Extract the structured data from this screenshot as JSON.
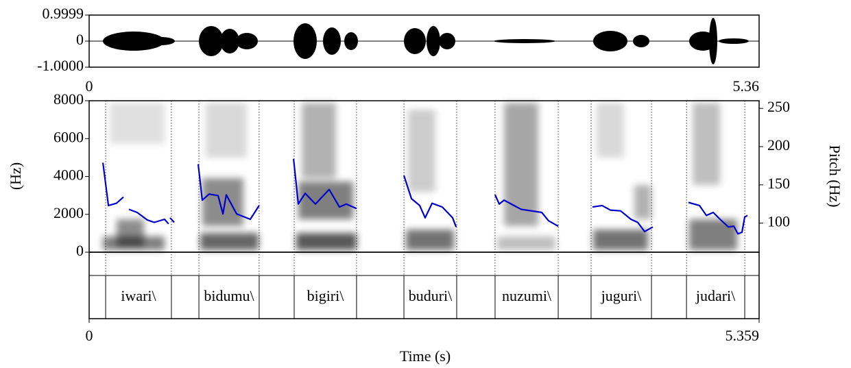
{
  "chart_data": {
    "type": "line",
    "xlabel": "Time (s)",
    "xlim": [
      0,
      5.359
    ],
    "xticks": [
      0,
      5.359
    ],
    "waveform": {
      "ylim": [
        -1,
        0.9999
      ],
      "yticks": [
        0.9999,
        0,
        {
          "value": -1,
          "label": "-1.0000"
        }
      ],
      "xlim": [
        0,
        5.36
      ],
      "xticks": [
        0,
        5.36
      ]
    },
    "ylabel": "(Hz)",
    "ylim": [
      0,
      8000
    ],
    "yticks": [
      0,
      2000,
      4000,
      6000,
      8000
    ],
    "y2label": "Pitch (Hz)",
    "y2lim": [
      62,
      260
    ],
    "y2ticks": [
      100,
      150,
      200,
      250
    ],
    "series": [
      {
        "color": "#0000cc",
        "axis": "y2",
        "x": [
          0.11,
          0.154,
          0.219,
          0.274,
          0.296,
          0.318,
          0.384,
          0.466,
          0.521,
          0.603,
          0.636,
          0.641,
          0.647,
          0.68
        ],
        "values": [
          179,
          123,
          126,
          134,
          null,
          118,
          114,
          104,
          101,
          105,
          99,
          null,
          107,
          101
        ]
      },
      {
        "color": "#0000cc",
        "axis": "y2",
        "x": [
          0.872,
          0.905,
          0.96,
          1.031,
          1.07,
          1.097,
          1.18,
          1.289,
          1.36
        ],
        "values": [
          177,
          130,
          138,
          136,
          112,
          137,
          112,
          105,
          123
        ]
      },
      {
        "color": "#0000cc",
        "axis": "y2",
        "x": [
          1.635,
          1.673,
          1.728,
          1.81,
          1.92,
          2.002,
          2.057,
          2.139
        ],
        "values": [
          184,
          125,
          139,
          125,
          144,
          121,
          125,
          119
        ]
      },
      {
        "color": "#0000cc",
        "axis": "y2",
        "x": [
          2.518,
          2.578,
          2.644,
          2.688,
          2.743,
          2.825,
          2.907,
          2.935
        ],
        "values": [
          162,
          132,
          123,
          107,
          126,
          121,
          107,
          95
        ]
      },
      {
        "color": "#0000cc",
        "axis": "y2",
        "x": [
          3.247,
          3.28,
          3.319,
          3.456,
          3.62,
          3.675,
          3.752
        ],
        "values": [
          137,
          125,
          130,
          118,
          114,
          103,
          96
        ]
      },
      {
        "color": "#0000cc",
        "axis": "y2",
        "x": [
          4.026,
          4.103,
          4.169,
          4.251,
          4.334,
          4.388,
          4.443,
          4.509
        ],
        "values": [
          121,
          123,
          117,
          116,
          105,
          101,
          89,
          95
        ]
      },
      {
        "color": "#0000cc",
        "axis": "y2",
        "x": [
          4.794,
          4.882,
          4.937,
          4.992,
          5.047,
          5.113,
          5.157,
          5.189,
          5.222,
          5.244,
          5.266
        ],
        "values": [
          127,
          123,
          110,
          114,
          105,
          95,
          96,
          86,
          88,
          108,
          110
        ]
      }
    ],
    "textgrid": {
      "intervals": [
        {
          "start": 0.132,
          "end": 0.658,
          "label": "iwari\\"
        },
        {
          "start": 0.878,
          "end": 1.36,
          "label": "bidumu\\"
        },
        {
          "start": 1.64,
          "end": 2.139,
          "label": "bigiri\\"
        },
        {
          "start": 2.518,
          "end": 2.94,
          "label": "buduri\\"
        },
        {
          "start": 3.247,
          "end": 3.752,
          "label": "nuzumi\\"
        },
        {
          "start": 4.015,
          "end": 4.498,
          "label": "juguri\\"
        },
        {
          "start": 4.778,
          "end": 5.244,
          "label": "judari\\"
        }
      ]
    }
  }
}
